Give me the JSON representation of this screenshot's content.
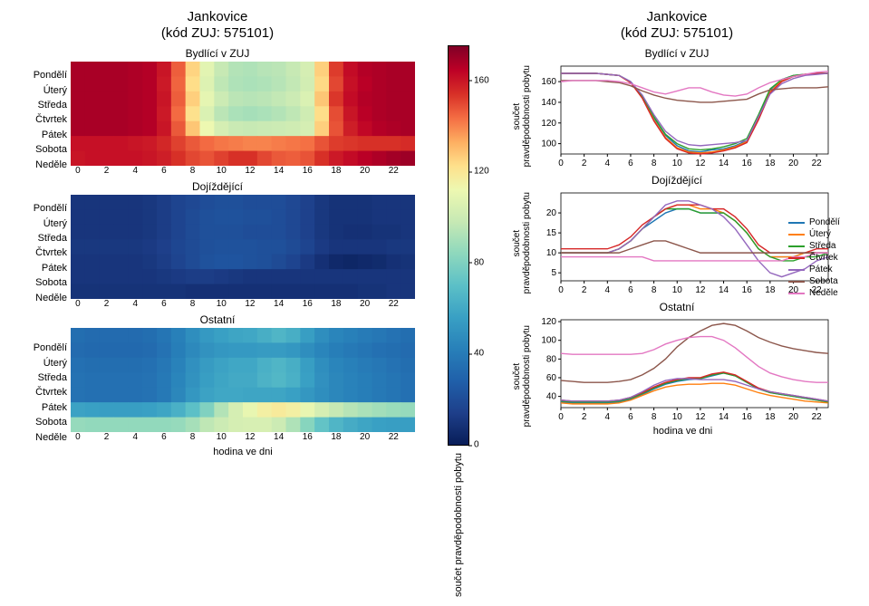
{
  "suptitle_line1": "Jankovice",
  "suptitle_line2": "(kód ZUJ: 575101)",
  "xlabel": "hodina ve dni",
  "heat_ylabel_cbar": "součet pravděpodobnosti pobytu",
  "line_ylabel": "součet\npravděpodobnosti pobytu",
  "panels": [
    "Bydlící v ZUJ",
    "Dojíždějící",
    "Ostatní"
  ],
  "days": [
    "Pondělí",
    "Úterý",
    "Středa",
    "Čtvrtek",
    "Pátek",
    "Sobota",
    "Neděle"
  ],
  "hours": [
    0,
    1,
    2,
    3,
    4,
    5,
    6,
    7,
    8,
    9,
    10,
    11,
    12,
    13,
    14,
    15,
    16,
    17,
    18,
    19,
    20,
    21,
    22,
    23
  ],
  "xticks": [
    0,
    2,
    4,
    6,
    8,
    10,
    12,
    14,
    16,
    18,
    20,
    22
  ],
  "heatmap_w": 380,
  "heatmap_h": 115,
  "line_w": 330,
  "line_h": 120,
  "cbar_h": 440,
  "cbar": {
    "min": 0,
    "max": 175,
    "ticks": [
      0,
      40,
      80,
      120,
      160
    ],
    "stops": [
      [
        0.0,
        "#081d58"
      ],
      [
        0.08,
        "#1e3f8a"
      ],
      [
        0.16,
        "#2060aa"
      ],
      [
        0.24,
        "#2880b9"
      ],
      [
        0.32,
        "#39a0c4"
      ],
      [
        0.4,
        "#5cc0c7"
      ],
      [
        0.48,
        "#8ed8bd"
      ],
      [
        0.56,
        "#c7e9b4"
      ],
      [
        0.64,
        "#edf8b1"
      ],
      [
        0.7,
        "#fee08b"
      ],
      [
        0.76,
        "#fdae61"
      ],
      [
        0.82,
        "#f46d43"
      ],
      [
        0.88,
        "#d73027"
      ],
      [
        0.94,
        "#bd0026"
      ],
      [
        1.0,
        "#800026"
      ]
    ]
  },
  "line_colors": {
    "Pondělí": "#1f77b4",
    "Úterý": "#ff7f0e",
    "Středa": "#2ca02c",
    "Čtvrtek": "#d62728",
    "Pátek": "#9467bd",
    "Sobota": "#8c564b",
    "Neděle": "#e377c2"
  },
  "series": {
    "Bydlící v ZUJ": {
      "ylim": [
        90,
        175
      ],
      "yticks": [
        100,
        120,
        140,
        160
      ],
      "Pondělí": [
        168,
        168,
        168,
        168,
        167,
        166,
        160,
        146,
        125,
        108,
        98,
        93,
        92,
        94,
        95,
        98,
        103,
        126,
        152,
        162,
        166,
        167,
        168,
        168
      ],
      "Úterý": [
        168,
        168,
        168,
        168,
        167,
        166,
        159,
        145,
        123,
        106,
        96,
        92,
        91,
        92,
        94,
        97,
        102,
        124,
        150,
        161,
        165,
        167,
        168,
        168
      ],
      "Středa": [
        168,
        168,
        168,
        168,
        167,
        166,
        160,
        146,
        126,
        109,
        100,
        95,
        94,
        95,
        97,
        100,
        105,
        128,
        153,
        162,
        166,
        167,
        168,
        168
      ],
      "Čtvrtek": [
        168,
        168,
        168,
        168,
        167,
        166,
        159,
        144,
        122,
        105,
        95,
        91,
        90,
        91,
        93,
        96,
        101,
        123,
        149,
        160,
        165,
        167,
        168,
        168
      ],
      "Pátek": [
        168,
        168,
        168,
        168,
        167,
        166,
        160,
        147,
        128,
        112,
        103,
        99,
        98,
        99,
        100,
        101,
        103,
        126,
        148,
        158,
        163,
        166,
        167,
        168
      ],
      "Sobota": [
        161,
        161,
        161,
        161,
        160,
        159,
        156,
        151,
        147,
        144,
        142,
        141,
        140,
        140,
        141,
        142,
        143,
        148,
        152,
        153,
        154,
        154,
        154,
        155
      ],
      "Neděle": [
        160,
        161,
        161,
        161,
        161,
        160,
        158,
        154,
        150,
        148,
        151,
        154,
        154,
        150,
        147,
        146,
        148,
        154,
        159,
        162,
        165,
        167,
        169,
        170
      ]
    },
    "Dojíždějící": {
      "ylim": [
        3,
        25
      ],
      "yticks": [
        5,
        10,
        15,
        20
      ],
      "Pondělí": [
        10,
        10,
        10,
        10,
        10,
        11,
        13,
        16,
        18,
        20,
        21,
        21,
        20,
        20,
        20,
        18,
        15,
        11,
        9,
        9,
        9,
        10,
        10,
        10
      ],
      "Úterý": [
        10,
        10,
        10,
        10,
        10,
        11,
        13,
        16,
        19,
        21,
        22,
        22,
        21,
        21,
        20,
        18,
        15,
        11,
        9,
        9,
        9,
        10,
        10,
        10
      ],
      "Středa": [
        10,
        10,
        10,
        10,
        10,
        11,
        13,
        16,
        19,
        21,
        21,
        21,
        20,
        20,
        20,
        18,
        15,
        11,
        9,
        8,
        8,
        9,
        9,
        10
      ],
      "Čtvrtek": [
        11,
        11,
        11,
        11,
        11,
        12,
        14,
        17,
        19,
        21,
        22,
        22,
        22,
        21,
        21,
        19,
        16,
        12,
        10,
        10,
        10,
        10,
        11,
        11
      ],
      "Pátek": [
        10,
        10,
        10,
        10,
        10,
        11,
        13,
        16,
        19,
        22,
        23,
        23,
        22,
        21,
        19,
        16,
        12,
        8,
        5,
        4,
        5,
        6,
        8,
        9
      ],
      "Sobota": [
        10,
        10,
        10,
        10,
        10,
        10,
        11,
        12,
        13,
        13,
        12,
        11,
        10,
        10,
        10,
        10,
        10,
        10,
        10,
        10,
        10,
        10,
        10,
        10
      ],
      "Neděle": [
        9,
        9,
        9,
        9,
        9,
        9,
        9,
        9,
        8,
        8,
        8,
        8,
        8,
        8,
        8,
        8,
        8,
        8,
        8,
        8,
        9,
        9,
        10,
        10
      ]
    },
    "Ostatní": {
      "ylim": [
        28,
        122
      ],
      "yticks": [
        40,
        60,
        80,
        100,
        120
      ],
      "Pondělí": [
        34,
        33,
        33,
        33,
        33,
        34,
        37,
        42,
        48,
        53,
        56,
        58,
        59,
        62,
        65,
        62,
        55,
        48,
        44,
        42,
        40,
        38,
        36,
        34
      ],
      "Úterý": [
        33,
        32,
        32,
        32,
        32,
        33,
        36,
        41,
        46,
        50,
        52,
        53,
        53,
        54,
        54,
        52,
        48,
        44,
        41,
        39,
        37,
        35,
        34,
        33
      ],
      "Středa": [
        35,
        34,
        34,
        34,
        34,
        35,
        38,
        43,
        49,
        54,
        57,
        59,
        59,
        63,
        65,
        62,
        55,
        48,
        44,
        42,
        40,
        38,
        36,
        34
      ],
      "Čtvrtek": [
        36,
        35,
        35,
        35,
        35,
        36,
        39,
        44,
        50,
        55,
        58,
        60,
        60,
        64,
        66,
        63,
        56,
        49,
        45,
        43,
        41,
        39,
        37,
        35
      ],
      "Pátek": [
        36,
        35,
        35,
        35,
        35,
        36,
        39,
        45,
        52,
        57,
        59,
        59,
        58,
        58,
        58,
        56,
        52,
        48,
        45,
        43,
        41,
        39,
        37,
        35
      ],
      "Sobota": [
        57,
        56,
        55,
        55,
        55,
        56,
        58,
        63,
        70,
        80,
        93,
        103,
        110,
        116,
        118,
        116,
        110,
        103,
        98,
        94,
        91,
        89,
        87,
        86
      ],
      "Neděle": [
        86,
        85,
        85,
        85,
        85,
        85,
        85,
        86,
        90,
        96,
        100,
        103,
        104,
        104,
        100,
        92,
        82,
        72,
        65,
        61,
        58,
        56,
        55,
        55
      ]
    }
  }
}
